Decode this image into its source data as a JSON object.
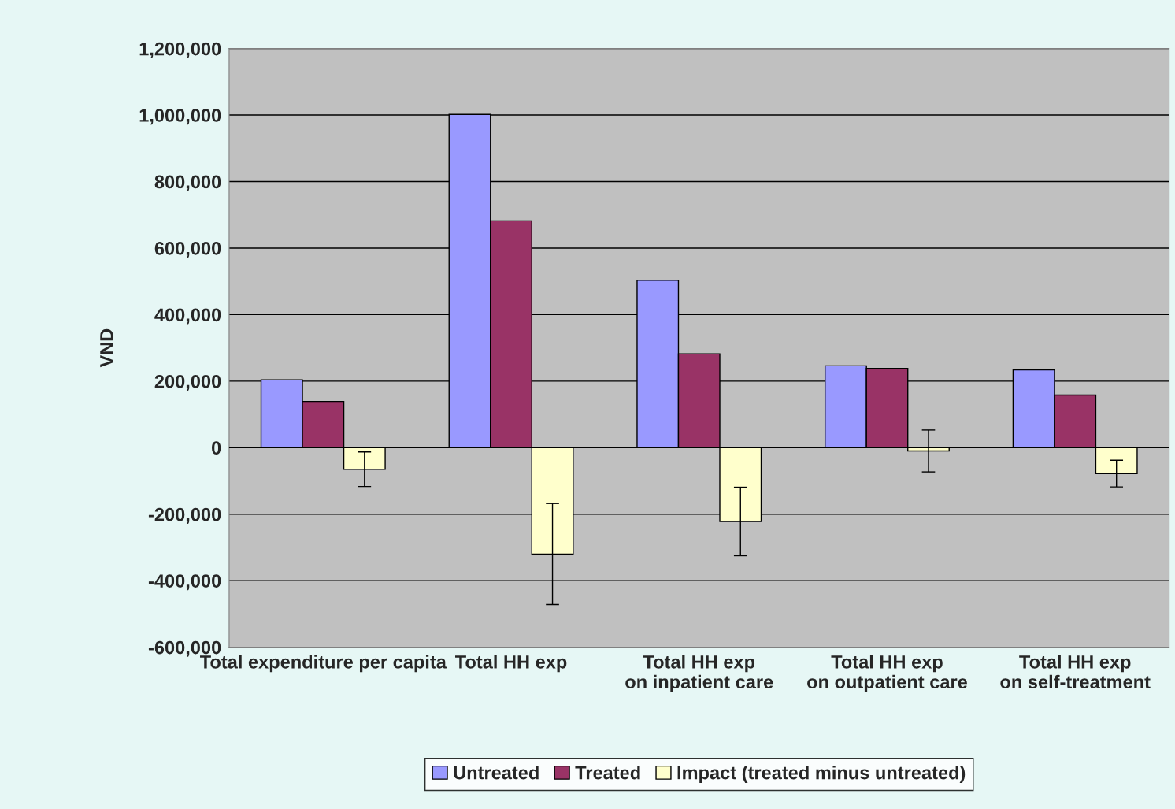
{
  "chart_data": {
    "type": "bar",
    "ylabel": "VND",
    "categories": [
      "Total expenditure per capita",
      "Total HH exp",
      "Total HH exp on inpatient care",
      "Total HH exp on outpatient care",
      "Total HH exp on self-treatment"
    ],
    "series": [
      {
        "name": "Untreated",
        "color": "#9999ff",
        "values": [
          204000,
          1002000,
          503000,
          246000,
          234000
        ]
      },
      {
        "name": "Treated",
        "color": "#993366",
        "values": [
          139000,
          682000,
          282000,
          238000,
          158000
        ]
      },
      {
        "name": "Impact (treated minus untreated)",
        "color": "#ffffcc",
        "values": [
          -65000,
          -320000,
          -222000,
          -10000,
          -78000
        ],
        "errors": [
          52000,
          152000,
          103000,
          63000,
          40000
        ]
      }
    ],
    "ylim": [
      -600000,
      1200000
    ],
    "yticks": [
      {
        "value": -600000,
        "label": "-600,000"
      },
      {
        "value": -400000,
        "label": "-400,000"
      },
      {
        "value": -200000,
        "label": "-200,000"
      },
      0,
      {
        "value": 200000,
        "label": "200,000"
      },
      {
        "value": 400000,
        "label": "400,000"
      },
      {
        "value": 600000,
        "label": "600,000"
      },
      {
        "value": 800000,
        "label": "800,000"
      },
      {
        "value": 1000000,
        "label": "1,000,000"
      },
      {
        "value": 1200000,
        "label": "1,200,000"
      }
    ],
    "grid": "y",
    "legend": "bottom"
  }
}
